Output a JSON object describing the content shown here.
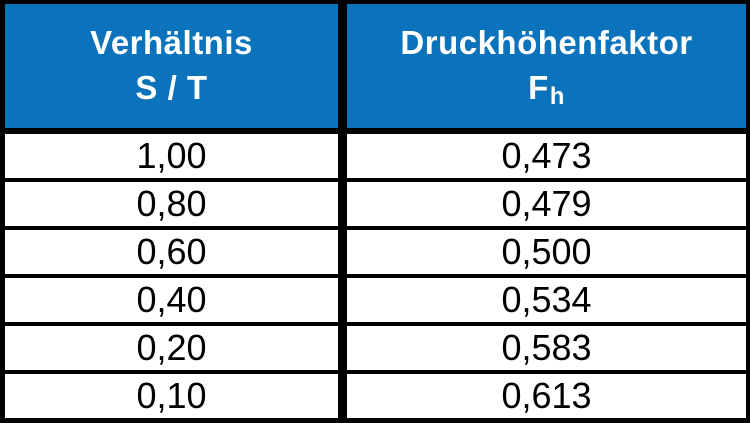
{
  "table": {
    "header": {
      "ratio_line1": "Verhältnis",
      "ratio_line2": "S / T",
      "factor_line1": "Druckhöhenfaktor",
      "factor_symbol": "F",
      "factor_subscript": "h"
    },
    "rows": [
      {
        "ratio": "1,00",
        "factor": "0,473"
      },
      {
        "ratio": "0,80",
        "factor": "0,479"
      },
      {
        "ratio": "0,60",
        "factor": "0,500"
      },
      {
        "ratio": "0,40",
        "factor": "0,534"
      },
      {
        "ratio": "0,20",
        "factor": "0,583"
      },
      {
        "ratio": "0,10",
        "factor": "0,613"
      }
    ]
  },
  "colors": {
    "header_bg": "#0b73bc",
    "header_fg": "#ffffff",
    "row_bg": "#ffffff",
    "row_fg": "#000000",
    "border": "#000000"
  },
  "chart_data": {
    "type": "table",
    "title": "",
    "columns": [
      "Verhältnis S / T",
      "Druckhöhenfaktor Fh"
    ],
    "rows": [
      [
        "1,00",
        "0,473"
      ],
      [
        "0,80",
        "0,479"
      ],
      [
        "0,60",
        "0,500"
      ],
      [
        "0,40",
        "0,534"
      ],
      [
        "0,20",
        "0,583"
      ],
      [
        "0,10",
        "0,613"
      ]
    ]
  }
}
